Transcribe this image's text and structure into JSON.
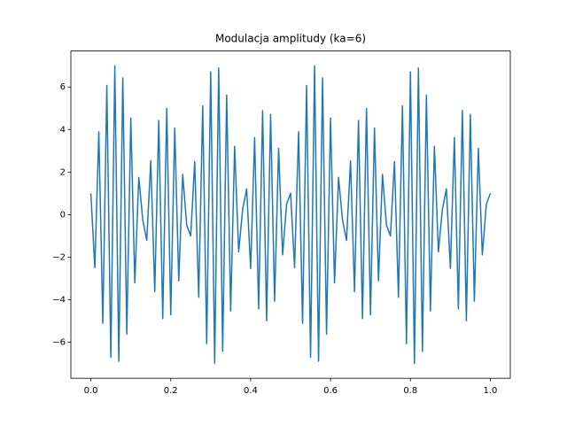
{
  "chart_data": {
    "type": "line",
    "title": "Modulacja amplitudy (ka=6)",
    "color": "#1f77b4",
    "x": [
      0,
      0.01,
      0.02,
      0.03,
      0.04,
      0.05,
      0.06,
      0.07,
      0.08,
      0.09,
      0.1,
      0.11,
      0.12,
      0.13,
      0.14,
      0.15,
      0.16,
      0.17,
      0.18,
      0.19,
      0.2,
      0.21,
      0.22,
      0.23,
      0.24,
      0.25,
      0.26,
      0.27,
      0.28,
      0.29,
      0.3,
      0.31,
      0.32,
      0.33,
      0.34,
      0.35,
      0.36,
      0.37,
      0.38,
      0.39,
      0.4,
      0.41,
      0.42,
      0.43,
      0.44,
      0.45,
      0.46,
      0.47,
      0.48,
      0.49,
      0.5,
      0.51,
      0.52,
      0.53,
      0.54,
      0.55,
      0.56,
      0.57,
      0.58,
      0.59,
      0.6,
      0.61,
      0.62,
      0.63,
      0.64,
      0.65,
      0.66,
      0.67,
      0.68,
      0.69,
      0.7,
      0.71,
      0.72,
      0.73,
      0.74,
      0.75,
      0.76,
      0.77,
      0.78,
      0.79,
      0.8,
      0.81,
      0.82,
      0.83,
      0.84,
      0.85,
      0.86,
      0.87,
      0.88,
      0.89,
      0.9,
      0.91,
      0.92,
      0.93,
      0.94,
      0.95,
      0.96,
      0.97,
      0.98,
      0.99,
      1
    ],
    "values": [
      1,
      -2.49,
      3.89,
      -5.11,
      6.07,
      -6.71,
      6.99,
      -6.89,
      6.43,
      -5.62,
      4.53,
      -3.21,
      1.75,
      -0.25,
      -1.21,
      2.53,
      -3.62,
      4.43,
      -4.89,
      4.99,
      -4.71,
      4.07,
      -3.11,
      1.89,
      -0.49,
      -1,
      2.49,
      -3.89,
      5.11,
      -6.07,
      6.71,
      -6.99,
      6.89,
      -6.43,
      5.62,
      -4.53,
      3.21,
      -1.75,
      0.25,
      1.21,
      -2.53,
      3.62,
      -4.43,
      4.89,
      -4.99,
      4.71,
      -4.07,
      3.11,
      -1.89,
      0.49,
      1,
      -2.49,
      3.89,
      -5.11,
      6.07,
      -6.71,
      6.99,
      -6.89,
      6.43,
      -5.62,
      4.53,
      -3.21,
      1.75,
      -0.25,
      -1.21,
      2.53,
      -3.62,
      4.43,
      -4.89,
      4.99,
      -4.71,
      4.07,
      -3.11,
      1.89,
      -0.49,
      -1,
      2.49,
      -3.89,
      5.11,
      -6.07,
      6.71,
      -6.99,
      6.89,
      -6.43,
      5.62,
      -4.53,
      3.21,
      -1.75,
      0.25,
      1.21,
      -2.53,
      3.62,
      -4.43,
      4.89,
      -4.99,
      4.71,
      -4.07,
      3.11,
      -1.89,
      0.49,
      1
    ],
    "xlim": [
      -0.05,
      1.05
    ],
    "xticks": [
      {
        "value": 0,
        "label": "0.0"
      },
      {
        "value": 0.2,
        "label": "0.2"
      },
      {
        "value": 0.4,
        "label": "0.4"
      },
      {
        "value": 0.6,
        "label": "0.6"
      },
      {
        "value": 0.8,
        "label": "0.8"
      },
      {
        "value": 1,
        "label": "1.0"
      }
    ],
    "ylim": [
      -7.69,
      7.69
    ],
    "yticks": [
      {
        "value": -6,
        "label": "−6"
      },
      {
        "value": -4,
        "label": "−4"
      },
      {
        "value": -2,
        "label": "−2"
      },
      0,
      2,
      4,
      6
    ]
  }
}
